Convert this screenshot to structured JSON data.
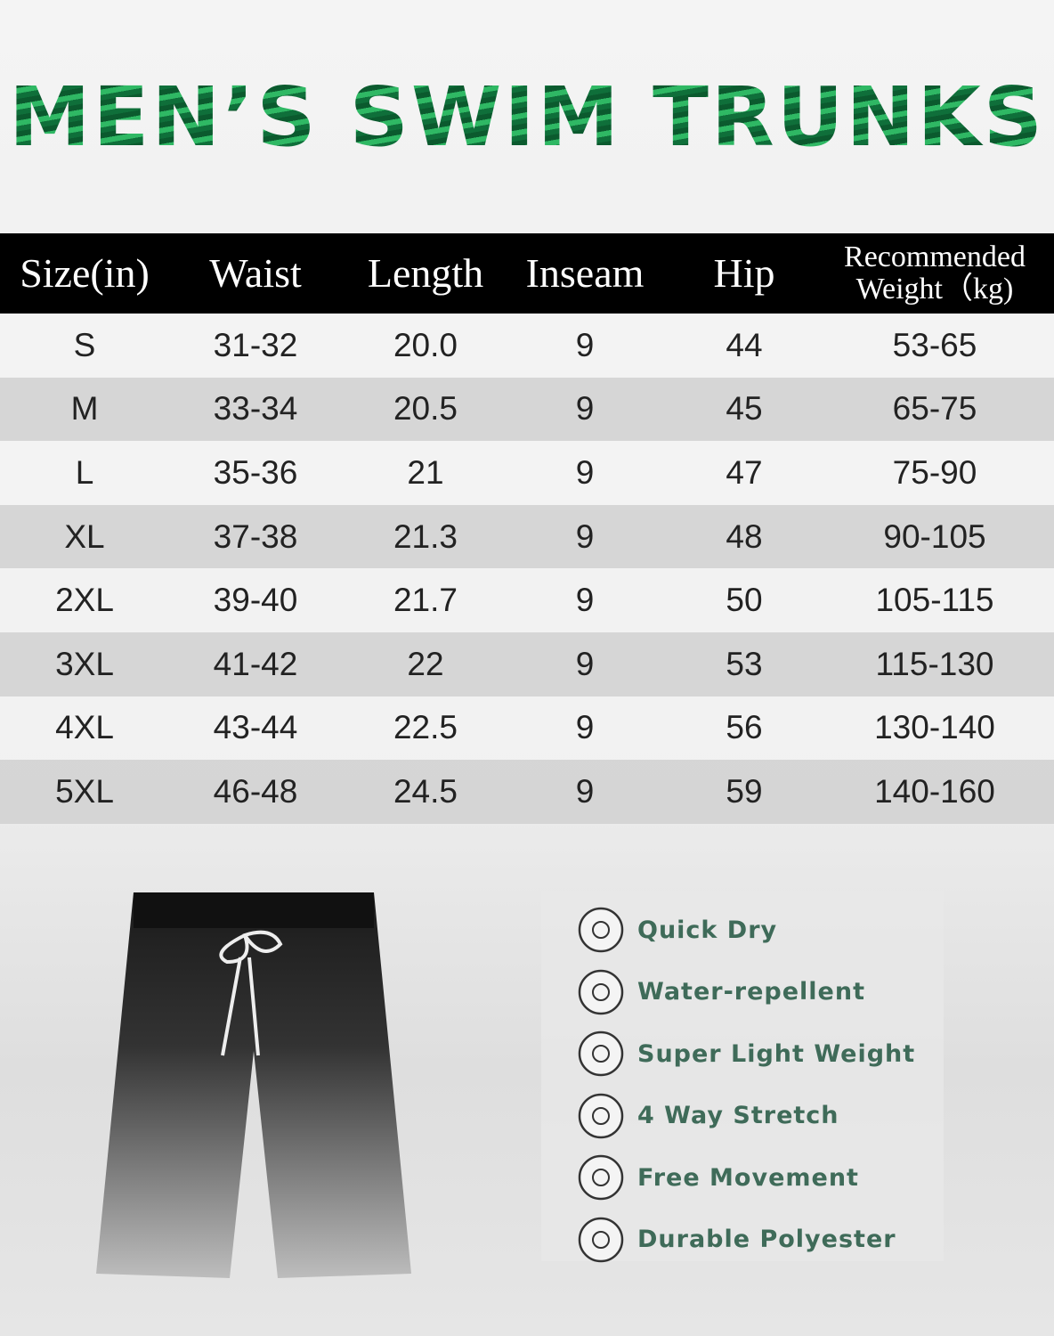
{
  "header": {
    "title": "MEN’S SWIM TRUNKS"
  },
  "table": {
    "columns": [
      "Size(in)",
      "Waist",
      "Length",
      "Inseam",
      "Hip",
      "Recommended Weight（kg)"
    ],
    "rows": [
      [
        "S",
        "31-32",
        "20.0",
        "9",
        "44",
        "53-65"
      ],
      [
        "M",
        "33-34",
        "20.5",
        "9",
        "45",
        "65-75"
      ],
      [
        "L",
        "35-36",
        "21",
        "9",
        "47",
        "75-90"
      ],
      [
        "XL",
        "37-38",
        "21.3",
        "9",
        "48",
        "90-105"
      ],
      [
        "2XL",
        "39-40",
        "21.7",
        "9",
        "50",
        "105-115"
      ],
      [
        "3XL",
        "41-42",
        "22",
        "9",
        "53",
        "115-130"
      ],
      [
        "4XL",
        "43-44",
        "22.5",
        "9",
        "56",
        "130-140"
      ],
      [
        "5XL",
        "46-48",
        "24.5",
        "9",
        "59",
        "140-160"
      ]
    ]
  },
  "features": [
    "Quick Dry",
    "Water-repellent",
    "Super Light Weight",
    "4 Way Stretch",
    "Free Movement",
    "Durable Polyester"
  ]
}
